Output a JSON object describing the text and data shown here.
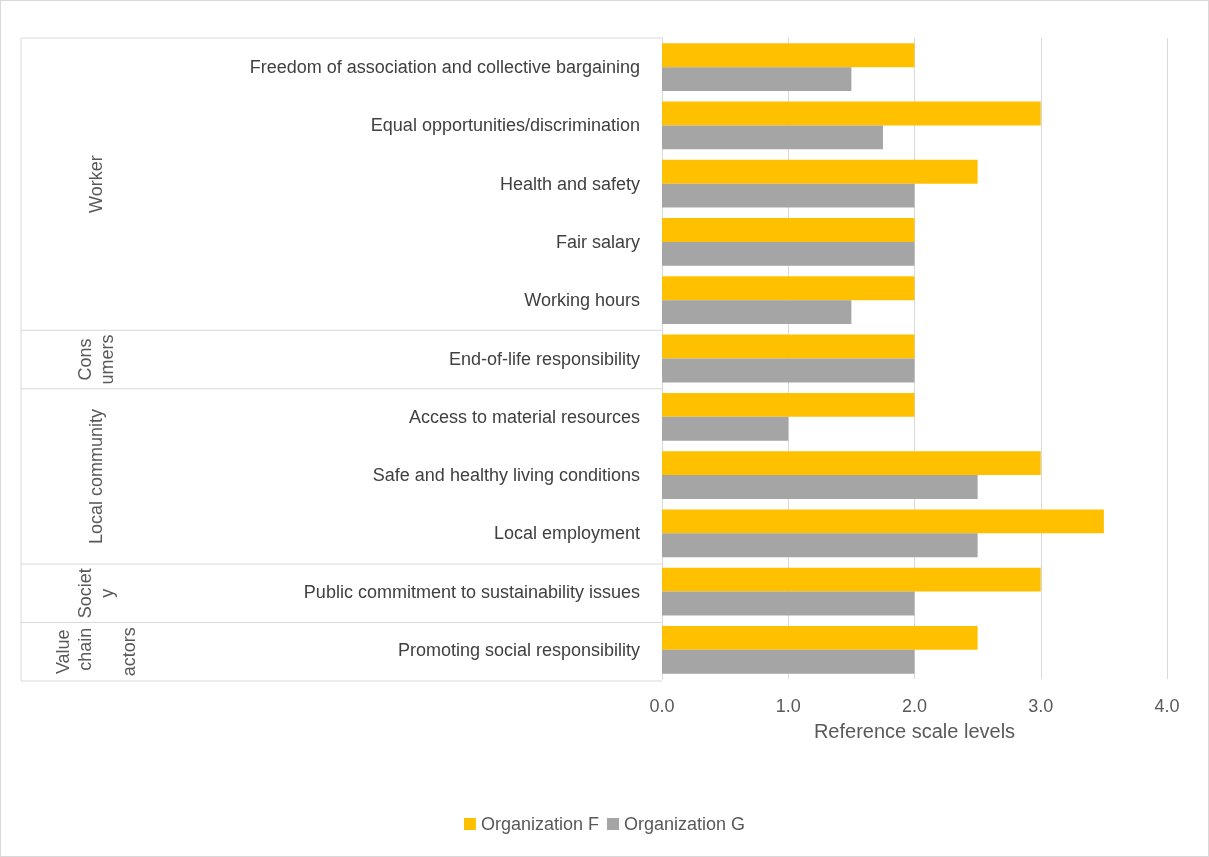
{
  "chart_data": {
    "type": "bar",
    "orientation": "horizontal",
    "xlabel": "Reference scale levels",
    "categories": [
      "Freedom of association and collective bargaining",
      "Equal opportunities/discrimination",
      "Health and safety",
      "Fair salary",
      "Working hours",
      "End-of-life responsibility",
      "Access to material resources",
      "Safe and healthy living conditions",
      "Local employment",
      "Public commitment to sustainability issues",
      "Promoting social responsibility"
    ],
    "series": [
      {
        "name": "Organization F",
        "color": "#ffc000",
        "values": [
          2,
          3,
          2.5,
          2,
          2,
          2,
          2,
          3,
          3.5,
          3,
          2.5
        ]
      },
      {
        "name": "Organization G",
        "color": "#a5a5a5",
        "values": [
          1.5,
          1.75,
          2,
          2,
          1.5,
          2,
          1,
          2.5,
          2.5,
          2,
          2
        ]
      }
    ],
    "xlim": [
      0,
      4
    ],
    "xticks": [
      {
        "value": 0,
        "label": "0.0"
      },
      {
        "value": 1,
        "label": "1.0"
      },
      {
        "value": 2,
        "label": "2.0"
      },
      {
        "value": 3,
        "label": "3.0"
      },
      {
        "value": 4,
        "label": "4.0"
      }
    ],
    "annotations": [
      "Worker",
      "Consumers",
      "Local community",
      "Society",
      "Value chain actors"
    ],
    "grid": "x",
    "legend": "bottom"
  }
}
